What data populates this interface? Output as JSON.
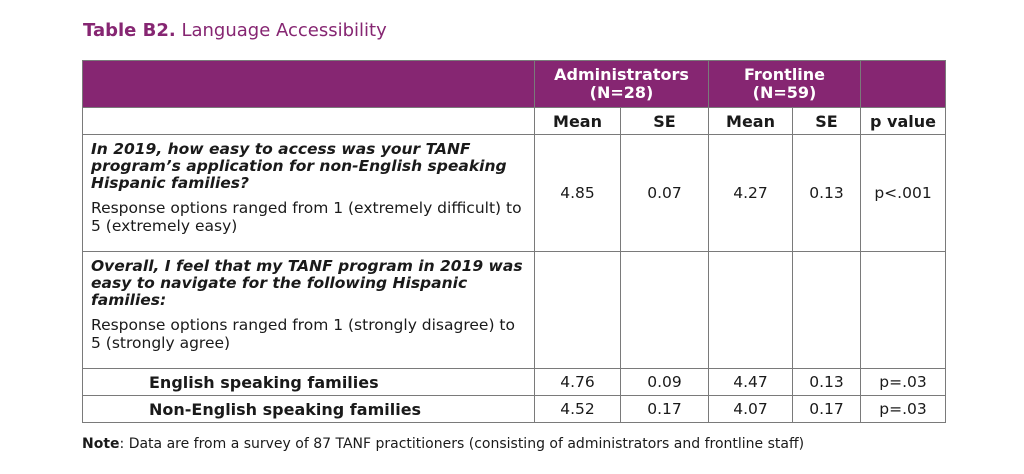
{
  "caption": {
    "label": "Table B2.",
    "title": "Language Accessibility"
  },
  "table": {
    "groups": [
      {
        "name": "Administrators",
        "n": "(N=28)"
      },
      {
        "name": "Frontline",
        "n": "(N=59)"
      }
    ],
    "columns": [
      "Mean",
      "SE",
      "Mean",
      "SE",
      "p value"
    ],
    "q1": {
      "question": "In 2019, how easy to access was your TANF program’s application for non-English speaking Hispanic families?",
      "options": "Response options ranged from 1 (extremely difficult) to 5 (extremely easy)",
      "values": [
        "4.85",
        "0.07",
        "4.27",
        "0.13",
        "p<.001"
      ]
    },
    "q2": {
      "question": "Overall, I feel that my TANF program in 2019 was easy to navigate for the following Hispanic families:",
      "options": "Response options ranged from 1 (strongly disagree) to 5 (strongly agree)"
    },
    "rows": [
      {
        "label": "English speaking families",
        "values": [
          "4.76",
          "0.09",
          "4.47",
          "0.13",
          "p=.03"
        ]
      },
      {
        "label": "Non-English speaking families",
        "values": [
          "4.52",
          "0.17",
          "4.07",
          "0.17",
          "p=.03"
        ]
      }
    ]
  },
  "footnote": {
    "label": "Note",
    "text": ": Data are from a survey of 87 TANF practitioners (consisting of administrators and frontline staff)"
  },
  "colors": {
    "accent": "#862672"
  }
}
